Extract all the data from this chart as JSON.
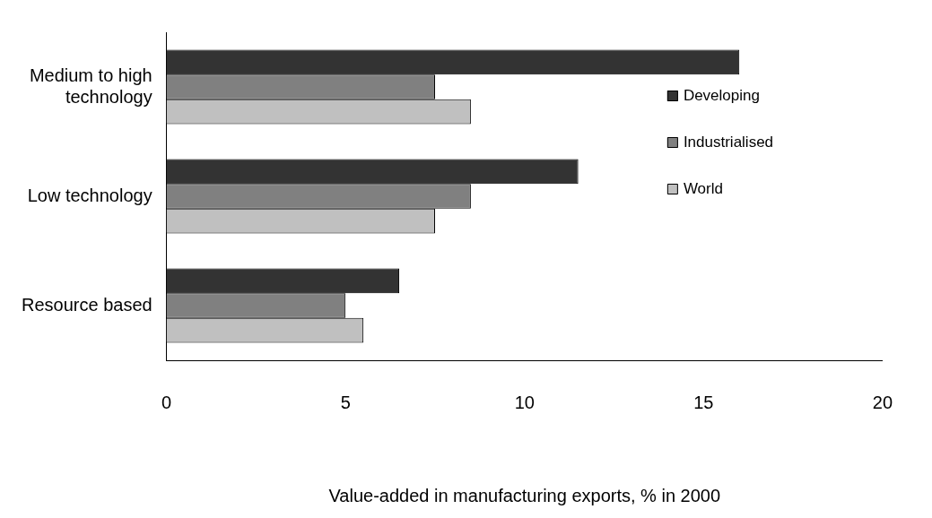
{
  "chart_data": {
    "type": "bar",
    "orientation": "horizontal",
    "xlabel": "Value-added in manufacturing exports, % in 2000",
    "categories": [
      "Medium to high technology",
      "Low technology",
      "Resource based"
    ],
    "series": [
      {
        "name": "Developing",
        "color": "#333333",
        "values": [
          16,
          11.5,
          6.5
        ]
      },
      {
        "name": "Industrialised",
        "color": "#808080",
        "values": [
          7.5,
          8.5,
          5
        ]
      },
      {
        "name": "World",
        "color": "#c0c0c0",
        "values": [
          8.5,
          7.5,
          5.5
        ]
      }
    ],
    "xlim": [
      0,
      20
    ],
    "xticks": [
      0,
      5,
      10,
      15,
      20
    ],
    "grid": false,
    "legend": "right"
  }
}
